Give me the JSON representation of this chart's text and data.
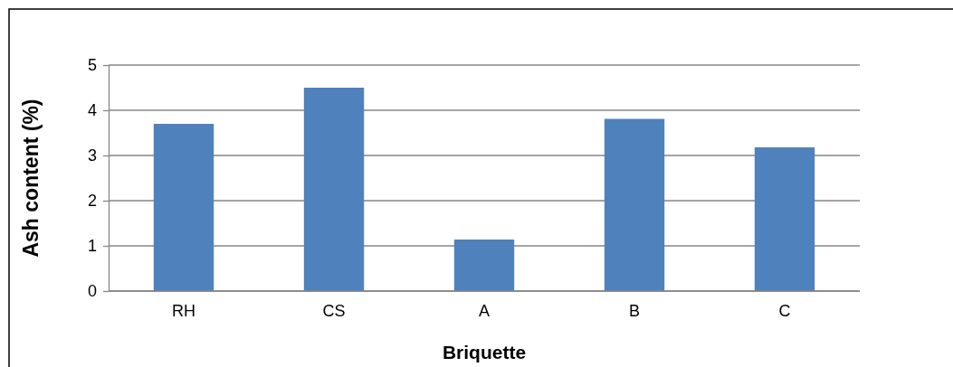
{
  "chart_data": {
    "type": "bar",
    "xlabel": "Briquette",
    "ylabel": "Ash content (%)",
    "categories": [
      "RH",
      "CS",
      "A",
      "B",
      "C"
    ],
    "values": [
      3.7,
      4.5,
      1.14,
      3.81,
      3.18
    ],
    "color": "#4f81bd",
    "ylim": [
      0,
      5
    ],
    "yticks": [
      0,
      1,
      2,
      3,
      4,
      5
    ],
    "grid": "y"
  }
}
